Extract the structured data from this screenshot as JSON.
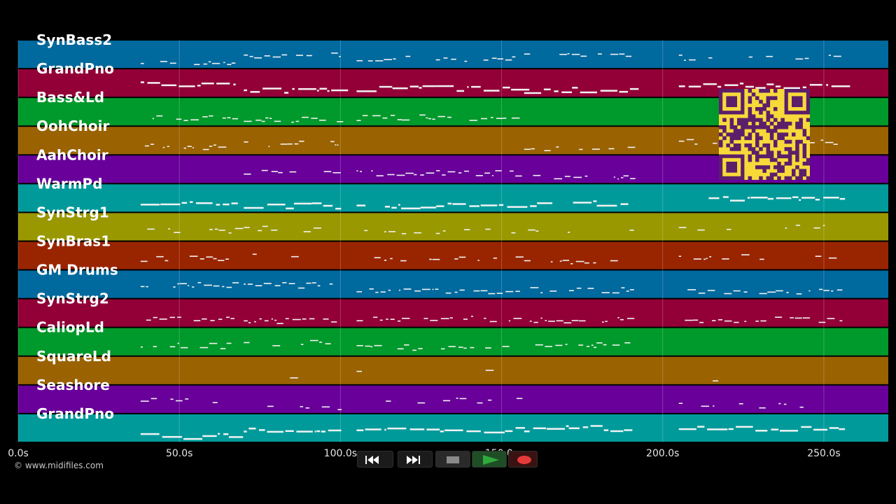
{
  "colors": {
    "background": "#000000",
    "track_colors": [
      "#00699e",
      "#920037",
      "#00992b",
      "#9a6200",
      "#680099",
      "#009a9b",
      "#999800",
      "#992500"
    ],
    "note_color": "#f2f2f2",
    "qr_background": "#f7d93a",
    "qr_modules": "#5b1f6a",
    "record_red": "#e53a3a",
    "play_green": "#2faa3c"
  },
  "tracks": [
    {
      "name": "SynBass2"
    },
    {
      "name": "GrandPno"
    },
    {
      "name": "Bass&Ld"
    },
    {
      "name": "OohChoir"
    },
    {
      "name": "AahChoir"
    },
    {
      "name": "WarmPd"
    },
    {
      "name": "SynStrg1"
    },
    {
      "name": "SynBras1"
    },
    {
      "name": "GM Drums"
    },
    {
      "name": "SynStrg2"
    },
    {
      "name": "CaliopLd"
    },
    {
      "name": "SquareLd"
    },
    {
      "name": "Seashore"
    },
    {
      "name": "GrandPno"
    }
  ],
  "time_axis": {
    "ticks": [
      {
        "value": 0,
        "label": "0.0s"
      },
      {
        "value": 50,
        "label": "50.0s"
      },
      {
        "value": 100,
        "label": "100.0s"
      },
      {
        "value": 150,
        "label": "150.0s"
      },
      {
        "value": 200,
        "label": "200.0s"
      },
      {
        "value": 250,
        "label": "250.0s"
      }
    ],
    "range": [
      0,
      270
    ]
  },
  "credit": "© www.midifiles.com",
  "transport": {
    "buttons": [
      {
        "name": "rewind-button",
        "icon": "rewind-icon"
      },
      {
        "name": "fast-forward-button",
        "icon": "fast-forward-icon"
      },
      {
        "name": "stop-button",
        "icon": "stop-icon"
      },
      {
        "name": "play-button",
        "icon": "play-icon"
      },
      {
        "name": "record-button",
        "icon": "record-icon"
      }
    ]
  },
  "qr": {
    "icon": "qr-code-icon"
  }
}
